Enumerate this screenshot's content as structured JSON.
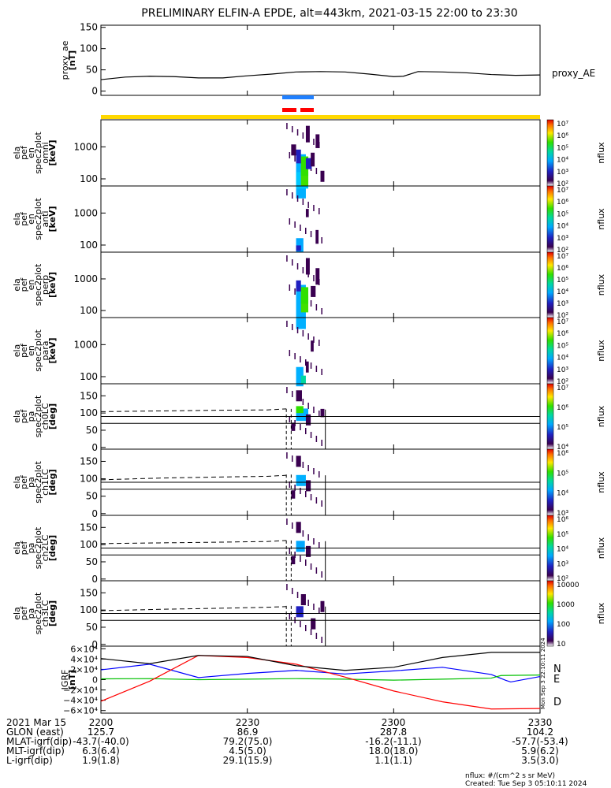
{
  "title": "PRELIMINARY ELFIN-A EPDE, alt=443km, 2021-03-15 22:00 to 23:30",
  "chart_data": {
    "type": "line",
    "time_axis": {
      "start": "2021-03-15 22:00",
      "end": "2021-03-15 23:30",
      "ticks": [
        "2200",
        "2230",
        "2300",
        "2330"
      ]
    },
    "science_zone": {
      "start": "22:39",
      "end": "22:46"
    },
    "panels": [
      {
        "id": "proxy_ae",
        "ylabel": [
          "proxy_ae",
          "[nT]"
        ],
        "yticks": [
          "150",
          "100",
          "50",
          "0"
        ],
        "ylim": [
          -10,
          155
        ],
        "legend": "proxy_AE",
        "series": [
          {
            "name": "proxy_AE",
            "color": "#000000",
            "x": [
              "22:00",
              "22:05",
              "22:10",
              "22:15",
              "22:20",
              "22:25",
              "22:30",
              "22:35",
              "22:40",
              "22:45",
              "22:50",
              "22:55",
              "23:00",
              "23:02",
              "23:05",
              "23:10",
              "23:15",
              "23:20",
              "23:25",
              "23:30"
            ],
            "values": [
              27,
              33,
              35,
              34,
              31,
              31,
              36,
              40,
              45,
              46,
              45,
              40,
              34,
              35,
              46,
              45,
              43,
              39,
              37,
              38
            ]
          }
        ]
      },
      {
        "id": "omni",
        "ylabel": [
          "ela",
          "pef",
          "en",
          "spec2plot",
          "omni",
          "[keV]"
        ],
        "yticks": [
          "1000",
          "100"
        ],
        "scale": "log",
        "ylim": [
          60,
          7000
        ]
      },
      {
        "id": "anti",
        "ylabel": [
          "ela",
          "pef",
          "en",
          "spec2plot",
          "anti",
          "[keV]"
        ],
        "yticks": [
          "1000",
          "100"
        ],
        "scale": "log",
        "ylim": [
          60,
          7000
        ]
      },
      {
        "id": "perp",
        "ylabel": [
          "ela",
          "pef",
          "en",
          "spec2plot",
          "perp",
          "[keV]"
        ],
        "yticks": [
          "1000",
          "100"
        ],
        "scale": "log",
        "ylim": [
          60,
          7000
        ]
      },
      {
        "id": "para",
        "ylabel": [
          "ela",
          "pef",
          "en",
          "spec2plot",
          "para",
          "[keV]"
        ],
        "yticks": [
          "1000",
          "100"
        ],
        "scale": "log",
        "ylim": [
          60,
          7000
        ]
      },
      {
        "id": "ch0LC",
        "ylabel": [
          "ela",
          "pef",
          "pa",
          "spec2plot",
          "ch0LC",
          "[deg]"
        ],
        "yticks": [
          "150",
          "100",
          "50",
          "0"
        ],
        "ylim": [
          -5,
          185
        ],
        "lines_deg": [
          90,
          70
        ],
        "dashed": [
          {
            "x": [
              "22:00",
              "22:12",
              "22:24",
              "22:34",
              "22:38"
            ],
            "values": [
              104,
              106,
              108,
              109,
              112
            ]
          }
        ]
      },
      {
        "id": "ch1LC",
        "ylabel": [
          "ela",
          "pef",
          "pa",
          "spec2plot",
          "ch1LC",
          "[deg]"
        ],
        "yticks": [
          "150",
          "100",
          "50",
          "0"
        ],
        "ylim": [
          -5,
          185
        ],
        "lines_deg": [
          90,
          70
        ],
        "dashed": [
          {
            "x": [
              "22:00",
              "22:12",
              "22:24",
              "22:34",
              "22:38"
            ],
            "values": [
              97,
              102,
              105,
              107,
              110
            ]
          }
        ]
      },
      {
        "id": "ch2LC",
        "ylabel": [
          "ela",
          "pef",
          "pa",
          "spec2plot",
          "ch2LC",
          "[deg]"
        ],
        "yticks": [
          "150",
          "100",
          "50",
          "0"
        ],
        "ylim": [
          -5,
          185
        ],
        "lines_deg": [
          90,
          70
        ],
        "dashed": [
          {
            "x": [
              "22:00",
              "22:12",
              "22:24",
              "22:34",
              "22:38"
            ],
            "values": [
              103,
              105,
              107,
              109,
              112
            ]
          }
        ]
      },
      {
        "id": "ch3LC",
        "ylabel": [
          "ela",
          "pef",
          "pa",
          "spec2plot",
          "ch3LC",
          "[deg]"
        ],
        "yticks": [
          "150",
          "100",
          "50",
          "0"
        ],
        "ylim": [
          -5,
          185
        ],
        "lines_deg": [
          90,
          70
        ],
        "dashed": [
          {
            "x": [
              "22:00",
              "22:12",
              "22:24",
              "22:34",
              "22:38"
            ],
            "values": [
              98,
              102,
              105,
              108,
              110
            ]
          }
        ]
      },
      {
        "id": "igrf",
        "ylabel": [
          "IGRF",
          "[nT]"
        ],
        "yticks": [
          "6×10⁴",
          "4×10⁴",
          "2×10⁴",
          "0",
          "−2×10⁴",
          "−4×10⁴",
          "−6×10⁴"
        ],
        "ylim": [
          -65000,
          65000
        ],
        "series": [
          {
            "name": "N",
            "color": "#0000ff",
            "x": [
              "22:00",
              "22:10",
              "22:20",
              "22:30",
              "22:40",
              "22:50",
              "23:00",
              "23:10",
              "23:20",
              "23:23",
              "23:24",
              "23:30"
            ],
            "values": [
              19000,
              30000,
              4000,
              12000,
              18000,
              11000,
              17000,
              24000,
              10000,
              -1500,
              -4500,
              6000
            ]
          },
          {
            "name": "E",
            "color": "#00c000",
            "x": [
              "22:00",
              "22:10",
              "22:20",
              "22:30",
              "22:40",
              "22:50",
              "23:00",
              "23:10",
              "23:20",
              "23:22",
              "23:30"
            ],
            "values": [
              1500,
              2000,
              0,
              1000,
              2000,
              1000,
              -1000,
              1000,
              3000,
              8000,
              9000
            ]
          },
          {
            "name": "D",
            "color": "#ff0000",
            "x": [
              "22:00",
              "22:10",
              "22:20",
              "22:30",
              "22:40",
              "22:50",
              "23:00",
              "23:10",
              "23:20",
              "23:30"
            ],
            "values": [
              -42000,
              -3000,
              47000,
              43000,
              30000,
              5000,
              -22000,
              -43000,
              -57000,
              -56000
            ]
          },
          {
            "name": "",
            "color": "#000000",
            "x": [
              "22:00",
              "22:10",
              "22:20",
              "22:30",
              "22:40",
              "22:50",
              "23:00",
              "23:10",
              "23:20",
              "23:30"
            ],
            "values": [
              41000,
              31000,
              47000,
              45000,
              27000,
              18000,
              24000,
              43000,
              53000,
              53000
            ]
          }
        ]
      }
    ],
    "colorbars": [
      {
        "panel": "omni",
        "labels": [
          "10⁷",
          "10⁶",
          "10⁵",
          "10⁴",
          "10³",
          "10²"
        ],
        "title": "nflux"
      },
      {
        "panel": "anti",
        "labels": [
          "10⁷",
          "10⁶",
          "10⁵",
          "10⁴",
          "10³",
          "10²"
        ],
        "title": "nflux"
      },
      {
        "panel": "perp",
        "labels": [
          "10⁷",
          "10⁶",
          "10⁵",
          "10⁴",
          "10³",
          "10²"
        ],
        "title": "nflux"
      },
      {
        "panel": "para",
        "labels": [
          "10⁷",
          "10⁶",
          "10⁵",
          "10⁴",
          "10³",
          "10²"
        ],
        "title": "nflux"
      },
      {
        "panel": "ch0LC",
        "labels": [
          "10⁷",
          "10⁶",
          "10⁵",
          "10⁴"
        ],
        "title": "nflux"
      },
      {
        "panel": "ch1LC",
        "labels": [
          "10⁶",
          "10⁵",
          "10⁴",
          "10³"
        ],
        "title": "nflux"
      },
      {
        "panel": "ch2LC",
        "labels": [
          "10⁶",
          "10⁵",
          "10⁴",
          "10³",
          "10²"
        ],
        "title": "nflux"
      },
      {
        "panel": "ch3LC",
        "labels": [
          "10000",
          "1000",
          "100",
          "10"
        ],
        "title": "nflux"
      }
    ],
    "ephemeris": {
      "date": "2021 Mar 15",
      "rows": [
        {
          "label": "GLON (east)",
          "values": [
            "125.7",
            "86.9",
            "287.8",
            "104.2"
          ]
        },
        {
          "label": "MLAT-igrf(dip)",
          "values": [
            "-43.7(-40.0)",
            "79.2(75.0)",
            "-16.2(-11.1)",
            "-57.7(-53.4)"
          ]
        },
        {
          "label": "MLT-igrf(dip)",
          "values": [
            "6.3(6.4)",
            "4.5(5.0)",
            "18.0(18.0)",
            "5.9(6.2)"
          ]
        },
        {
          "label": "L-igrf(dip)",
          "values": [
            "1.9(1.8)",
            "29.1(15.9)",
            "1.1(1.1)",
            "3.5(3.0)"
          ]
        }
      ]
    },
    "side_stamp": "Mon Sep  3 22:10:11 2024",
    "footer": [
      "nflux: #/(cm^2 s sr MeV)",
      "Created: Tue Sep  3 05:10:11 2024"
    ]
  }
}
